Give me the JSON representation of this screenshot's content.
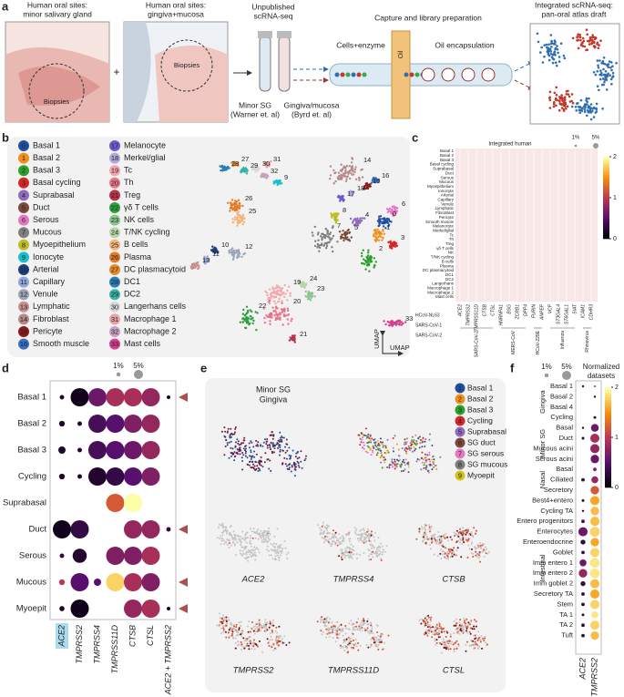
{
  "panel_a": {
    "letter": "a",
    "site1": [
      "Human oral sites:",
      "minor salivary gland"
    ],
    "biopsies1": "Biopsies",
    "plus": "+",
    "site2": [
      "Human oral sites:",
      "gingiva+mucosa"
    ],
    "biopsies2": "Biopsies",
    "unpublished": [
      "Unpublished",
      "scRNA-seq"
    ],
    "source1": [
      "Minor SG",
      "(Warner et. al)"
    ],
    "source2": [
      "Gingiva/mucosa",
      "(Byrd et. al)"
    ],
    "capture": "Capture and library preparation",
    "cells_enzyme": "Cells+enzyme",
    "oil": "Oil encapsulation",
    "oil_label": "Oil",
    "integrated": [
      "Integrated scRNA-seq:",
      "pan-oral atlas draft"
    ]
  },
  "panel_b": {
    "letter": "b",
    "umap": "UMAP",
    "clusters": [
      {
        "id": 0,
        "name": "Basal 1",
        "color": "#1d4f9c"
      },
      {
        "id": 1,
        "name": "Basal 2",
        "color": "#f28e1c"
      },
      {
        "id": 2,
        "name": "Basal 3",
        "color": "#2ca02c"
      },
      {
        "id": 3,
        "name": "Basal cycling",
        "color": "#d62728"
      },
      {
        "id": 4,
        "name": "Suprabasal",
        "color": "#8e6bbf"
      },
      {
        "id": 5,
        "name": "Duct",
        "color": "#7b4a3a"
      },
      {
        "id": 6,
        "name": "Serous",
        "color": "#e377c2"
      },
      {
        "id": 7,
        "name": "Mucous",
        "color": "#7f7f7f"
      },
      {
        "id": 8,
        "name": "Myoepithelium",
        "color": "#bcbd22"
      },
      {
        "id": 9,
        "name": "Ionocyte",
        "color": "#17becf"
      },
      {
        "id": 10,
        "name": "Arterial",
        "color": "#1b3f7a"
      },
      {
        "id": 11,
        "name": "Capillary",
        "color": "#8fa7d6"
      },
      {
        "id": 12,
        "name": "Venule",
        "color": "#9aa3b8"
      },
      {
        "id": 13,
        "name": "Lymphatic",
        "color": "#c98f8f"
      },
      {
        "id": 14,
        "name": "Fibroblast",
        "color": "#b58a8a"
      },
      {
        "id": 15,
        "name": "Pericyte",
        "color": "#8c1a1a"
      },
      {
        "id": 16,
        "name": "Smooth muscle",
        "color": "#3a6fbf"
      },
      {
        "id": 17,
        "name": "Melanocyte",
        "color": "#6a5acd"
      },
      {
        "id": 18,
        "name": "Merkel/glial",
        "color": "#b0a8d8"
      },
      {
        "id": 19,
        "name": "Tc",
        "color": "#f4a6b0"
      },
      {
        "id": 20,
        "name": "Th",
        "color": "#e8768a"
      },
      {
        "id": 21,
        "name": "Treg",
        "color": "#b8324a"
      },
      {
        "id": 22,
        "name": "γδ T cells",
        "color": "#2e9e3e"
      },
      {
        "id": 23,
        "name": "NK cells",
        "color": "#8cc48c"
      },
      {
        "id": 24,
        "name": "T/NK cycling",
        "color": "#b8d6a8"
      },
      {
        "id": 25,
        "name": "B cells",
        "color": "#f5b27a"
      },
      {
        "id": 26,
        "name": "Plasma",
        "color": "#e07b28"
      },
      {
        "id": 27,
        "name": "DC plasmacytoid",
        "color": "#e58a2a"
      },
      {
        "id": 28,
        "name": "DC1",
        "color": "#2a7fb8"
      },
      {
        "id": 29,
        "name": "DC2",
        "color": "#37b3a8"
      },
      {
        "id": 30,
        "name": "Langerhans cells",
        "color": "#d8d8d8"
      },
      {
        "id": 31,
        "name": "Macrophage 1",
        "color": "#e9a0a8"
      },
      {
        "id": 32,
        "name": "Macrophage 2",
        "color": "#c8a0c0"
      },
      {
        "id": 33,
        "name": "Mast cells",
        "color": "#d43f8d"
      }
    ]
  },
  "panel_c": {
    "letter": "c",
    "header": "Integrated human",
    "size_legend": [
      {
        "label": "1%",
        "value": 1
      },
      {
        "label": "5%",
        "value": 5
      }
    ],
    "colorbar_ticks": [
      0,
      1,
      2
    ],
    "expr_lim": [
      0,
      2
    ],
    "rows": [
      "Basal 1",
      "Basal 2",
      "Basal 3",
      "Basal cycling",
      "Suprabasal",
      "Duct",
      "Serous",
      "Mucous",
      "Myoepithelium",
      "Ionocyte",
      "Arterial",
      "Capillary",
      "Venule",
      "Lymphatic",
      "Fibroblast",
      "Pericyte",
      "Smooth muscle",
      "Melanocyte",
      "Merkel/glial",
      "Tc",
      "Th",
      "Treg",
      "γδ T cells",
      "NK",
      "T/NK cycling",
      "B cells",
      "Plasma",
      "DC plasmacytoid",
      "DC1",
      "DC2",
      "Langerhans",
      "Macrophage 1",
      "Macrophage 2",
      "Mast cells"
    ],
    "genes": [
      "ACE2",
      "TMPRSS2",
      "TMPRSS11D",
      "CTSB",
      "CTSL",
      "HNRNPA1",
      "BSG",
      "ZCRB1",
      "DPP4",
      "FURIN",
      "ANPEP",
      "VCP",
      "ST3GAL4",
      "ST6GAL1",
      "SIAT",
      "ICAM1",
      "CDHR3"
    ],
    "groups": [
      {
        "name": "SARS-CoV-2",
        "color": "#c0392b"
      },
      {
        "name": "MERS-CoV",
        "color": "#333333"
      },
      {
        "name": "HCoV-229E",
        "color": "#333333"
      },
      {
        "name": "Influenza",
        "color": "#333333"
      },
      {
        "name": "Rhinovirus",
        "color": "#333333"
      }
    ],
    "left_labels": [
      "HCoV-NL63",
      "SARS-CoV-1",
      "SARS-CoV-2"
    ]
  },
  "panel_d": {
    "letter": "d",
    "size_legend": [
      {
        "label": "1%",
        "value": 1
      },
      {
        "label": "5%",
        "value": 5
      }
    ],
    "expr_lim": [
      0,
      2
    ],
    "rows": [
      {
        "name": "Basal 1",
        "color": "#b5374a",
        "arrow": true
      },
      {
        "name": "Basal 2",
        "color": "#2f6fb0",
        "arrow": false
      },
      {
        "name": "Basal 3",
        "color": "#2f6fb0",
        "arrow": false
      },
      {
        "name": "Cycling",
        "color": "#2f6fb0",
        "arrow": false
      },
      {
        "name": "Suprabasal",
        "color": "#b5374a",
        "arrow": false
      },
      {
        "name": "Duct",
        "color": "#2f6fb0",
        "arrow": true
      },
      {
        "name": "Serous",
        "color": "#2f6fb0",
        "arrow": false
      },
      {
        "name": "Mucous",
        "color": "#b5374a",
        "arrow": true
      },
      {
        "name": "Myoepit",
        "color": "#b5374a",
        "arrow": true
      }
    ],
    "columns": [
      "ACE2",
      "TMPRSS2",
      "TMPRSS4",
      "TMPRSS11D",
      "CTSB",
      "CTSL",
      "ACE2 + TMPRSS2"
    ],
    "pct": [
      [
        0.3,
        5,
        5,
        5,
        5,
        5,
        0.2
      ],
      [
        0.5,
        0.3,
        5,
        5,
        5,
        5,
        null
      ],
      [
        0.8,
        0.3,
        5,
        5,
        5,
        5,
        null
      ],
      [
        0.5,
        0.3,
        5,
        5,
        5,
        5,
        null
      ],
      [
        null,
        null,
        null,
        5,
        5,
        null,
        null
      ],
      [
        5,
        5,
        null,
        null,
        5,
        5,
        0.3
      ],
      [
        0.3,
        3,
        null,
        5,
        5,
        5,
        null
      ],
      [
        0.5,
        5,
        0.8,
        5,
        5,
        5,
        null
      ],
      [
        0.4,
        5,
        null,
        null,
        5,
        5,
        0.2
      ]
    ],
    "expr": [
      [
        0.2,
        0.1,
        0.6,
        0.9,
        0.9,
        0.8,
        0.2
      ],
      [
        0.2,
        0.2,
        0.4,
        0.5,
        0.7,
        0.8,
        null
      ],
      [
        0.2,
        0.2,
        0.4,
        0.5,
        0.6,
        0.8,
        null
      ],
      [
        0.2,
        0.2,
        0.2,
        0.3,
        0.5,
        0.7,
        null
      ],
      [
        null,
        null,
        null,
        1.2,
        2,
        null,
        null
      ],
      [
        0.1,
        0.3,
        null,
        null,
        0.8,
        0.8,
        0.3
      ],
      [
        0.3,
        0.2,
        null,
        0.7,
        0.7,
        0.9,
        null
      ],
      [
        1,
        0.5,
        0.5,
        1.8,
        0.9,
        0.7,
        null
      ],
      [
        0.2,
        0.1,
        null,
        null,
        0.8,
        0.9,
        0.2
      ]
    ]
  },
  "panel_e": {
    "letter": "e",
    "minor_sg": "Minor SG",
    "gingiva": "Gingiva",
    "clusters": [
      {
        "id": 1,
        "name": "Basal 1",
        "color": "#1d4f9c"
      },
      {
        "id": 2,
        "name": "Basal 2",
        "color": "#f28e1c"
      },
      {
        "id": 3,
        "name": "Basal 3",
        "color": "#2ca02c"
      },
      {
        "id": 4,
        "name": "Cycling",
        "color": "#d62728"
      },
      {
        "id": 5,
        "name": "Suprabasal",
        "color": "#8e6bbf"
      },
      {
        "id": 6,
        "name": "SG duct",
        "color": "#7b4a3a"
      },
      {
        "id": 7,
        "name": "SG serous",
        "color": "#e377c2"
      },
      {
        "id": 8,
        "name": "SG mucous",
        "color": "#7f7f7f"
      },
      {
        "id": 9,
        "name": "Myoepit",
        "color": "#d4c21c"
      }
    ],
    "genes": [
      "ACE2",
      "TMPRSS4",
      "CTSB",
      "TMPRSS2",
      "TMPRSS11D",
      "CTSL"
    ]
  },
  "panel_f": {
    "letter": "f",
    "size_legend": [
      {
        "label": "1%",
        "value": 1
      },
      {
        "label": "5%",
        "value": 5
      }
    ],
    "colorbar_title": [
      "Normalized",
      "datasets"
    ],
    "colorbar_ticks": [
      0,
      1,
      2
    ],
    "expr_lim": [
      0,
      2
    ],
    "columns": [
      "ACE2",
      "TMPRSS2"
    ],
    "groups": [
      {
        "name": "Gingiva",
        "color": "#b5374a",
        "rows": [
          "Basal 1",
          "Basal 2",
          "Basal 4",
          "Cycling"
        ],
        "pct": [
          [
            0.2,
            0.1
          ],
          [
            null,
            0.2
          ],
          [
            null,
            null
          ],
          [
            null,
            0.3
          ]
        ],
        "expr": [
          [
            0.3,
            0.2
          ],
          [
            null,
            0.2
          ],
          [
            null,
            null
          ],
          [
            null,
            0.3
          ]
        ]
      },
      {
        "name": "Minor SG",
        "color": "#2f6fb0",
        "rows": [
          "Basal",
          "Duct",
          "Mucous acini",
          "Serous acini"
        ],
        "pct": [
          [
            0.2,
            2.5
          ],
          [
            0.3,
            3.5
          ],
          [
            null,
            3.5
          ],
          [
            null,
            3
          ]
        ],
        "expr": [
          [
            0.2,
            0.6
          ],
          [
            0.2,
            0.9
          ],
          [
            null,
            0.8
          ],
          [
            null,
            0.6
          ]
        ]
      },
      {
        "name": "Nasal",
        "color": "#3aa84a",
        "rows": [
          "Basal",
          "Ciliated",
          "Secretory"
        ],
        "pct": [
          [
            null,
            0.5
          ],
          [
            0.5,
            2
          ],
          [
            null,
            3
          ]
        ],
        "expr": [
          [
            null,
            0.7
          ],
          [
            0.3,
            0.8
          ],
          [
            null,
            1.2
          ]
        ]
      },
      {
        "name": "Intestinal",
        "color": "#9a9a9a",
        "rows": [
          "Best4+entero",
          "Cycling TA",
          "Entero progenitors",
          "Enterocytes",
          "Enteroendocrine",
          "Goblet",
          "Imm entero 1",
          "Imm entero 2",
          "Imm goblet 2",
          "Secretory TA",
          "Stem",
          "TA 1",
          "TA 2",
          "Tuft"
        ],
        "pct": [
          [
            0.3,
            3.5
          ],
          [
            0.2,
            3
          ],
          [
            0.5,
            3.5
          ],
          [
            3.5,
            4
          ],
          [
            1,
            3
          ],
          [
            0.5,
            3.5
          ],
          [
            2,
            4
          ],
          [
            3,
            4
          ],
          [
            1,
            3.5
          ],
          [
            0.5,
            3.5
          ],
          [
            0.5,
            3.5
          ],
          [
            0.3,
            2
          ],
          [
            0.5,
            3.5
          ],
          [
            0.5,
            3
          ]
        ],
        "expr": [
          [
            0.2,
            1.6
          ],
          [
            0.2,
            1.7
          ],
          [
            0.4,
            1.7
          ],
          [
            0.6,
            1.8
          ],
          [
            0.3,
            1.6
          ],
          [
            0.3,
            1.8
          ],
          [
            0.6,
            1.9
          ],
          [
            0.8,
            1.9
          ],
          [
            0.3,
            1.7
          ],
          [
            0.3,
            1.6
          ],
          [
            0.3,
            1.8
          ],
          [
            0.2,
            1.9
          ],
          [
            0.3,
            1.8
          ],
          [
            0.3,
            1.7
          ]
        ]
      }
    ]
  }
}
